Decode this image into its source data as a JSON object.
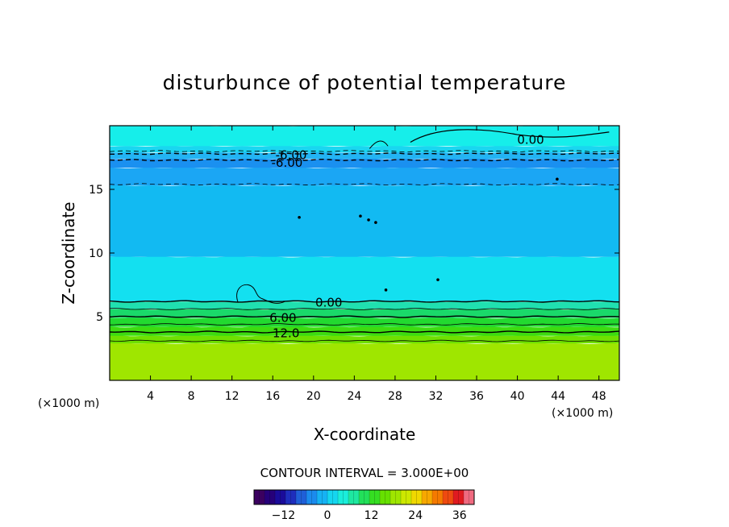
{
  "chart_data": {
    "type": "contour",
    "title": "disturbunce of potential temperature",
    "xlabel": "X-coordinate",
    "ylabel": "Z-coordinate",
    "x_unit": "(×1000 m)",
    "z_unit": "(×1000 m)",
    "xlim": [
      0,
      50
    ],
    "ylim": [
      0,
      20
    ],
    "x_ticks": [
      4,
      8,
      12,
      16,
      20,
      24,
      28,
      32,
      36,
      40,
      44,
      48
    ],
    "y_ticks": [
      5,
      10,
      15
    ],
    "contour_interval_text": "CONTOUR INTERVAL = 3.000E+00",
    "contour_interval": 3.0,
    "contour_labels": [
      {
        "text": "0.00",
        "x": 41.3,
        "z": 18.9
      },
      {
        "text": "-6.00",
        "x": 17.4,
        "z": 17.1
      },
      {
        "text": "-6.00",
        "x": 17.8,
        "z": 17.7
      },
      {
        "text": "0.00",
        "x": 21.5,
        "z": 6.1
      },
      {
        "text": "6.00",
        "x": 17.0,
        "z": 4.9
      },
      {
        "text": "12.0",
        "x": 17.3,
        "z": 3.7
      }
    ],
    "field_layers": [
      {
        "z_from": 0.0,
        "z_to": 2.9,
        "value": 15,
        "color": "#9fe600"
      },
      {
        "z_from": 2.9,
        "z_to": 3.5,
        "value": 13,
        "color": "#6fe000"
      },
      {
        "z_from": 3.5,
        "z_to": 4.2,
        "value": 11,
        "color": "#3ddc10"
      },
      {
        "z_from": 4.2,
        "z_to": 4.9,
        "value": 8,
        "color": "#22d930"
      },
      {
        "z_from": 4.9,
        "z_to": 5.6,
        "value": 5,
        "color": "#1ad96a"
      },
      {
        "z_from": 5.6,
        "z_to": 6.2,
        "value": 2,
        "color": "#20e0b0"
      },
      {
        "z_from": 6.2,
        "z_to": 9.7,
        "value": -1,
        "color": "#13e0f0"
      },
      {
        "z_from": 9.7,
        "z_to": 15.3,
        "value": -3,
        "color": "#12baf2"
      },
      {
        "z_from": 15.3,
        "z_to": 16.7,
        "value": -5,
        "color": "#1ba6f4"
      },
      {
        "z_from": 16.7,
        "z_to": 17.4,
        "value": -7,
        "color": "#1a90f0"
      },
      {
        "z_from": 17.4,
        "z_to": 17.9,
        "value": -6,
        "color": "#23b4f3"
      },
      {
        "z_from": 17.9,
        "z_to": 18.4,
        "value": -2,
        "color": "#1ad6f0"
      },
      {
        "z_from": 18.4,
        "z_to": 20.0,
        "value": 0,
        "color": "#16eeea"
      }
    ],
    "contour_lines": [
      {
        "z": 3.1,
        "level": 15,
        "style": "solid",
        "width": 0.8
      },
      {
        "z": 3.8,
        "level": 12,
        "style": "solid",
        "width": 1.4
      },
      {
        "z": 4.4,
        "level": 9,
        "style": "solid",
        "width": 0.8
      },
      {
        "z": 5.0,
        "level": 6,
        "style": "solid",
        "width": 1.4
      },
      {
        "z": 5.6,
        "level": 3,
        "style": "solid",
        "width": 0.8
      },
      {
        "z": 6.2,
        "level": 0,
        "style": "solid",
        "width": 1.4
      },
      {
        "z": 15.4,
        "level": -3,
        "style": "dashed",
        "width": 0.8
      },
      {
        "z": 17.3,
        "level": -6,
        "style": "dashed",
        "width": 1.4
      },
      {
        "z": 17.8,
        "level": -6,
        "style": "dashed",
        "width": 1.4
      },
      {
        "z": 18.0,
        "level": -3,
        "style": "dashed",
        "width": 0.8
      }
    ],
    "colorbar": {
      "min": -20,
      "max": 40,
      "ticks": [
        -12,
        0,
        12,
        24,
        36
      ],
      "tick_labels": [
        "−12",
        "0",
        "12",
        "24",
        "36"
      ],
      "colors": [
        "#3b0060",
        "#26007a",
        "#1a0b9a",
        "#1e2dbd",
        "#1f5fd8",
        "#1b8bee",
        "#16b2f4",
        "#15d6f0",
        "#1aeedb",
        "#1ee8a0",
        "#22e05a",
        "#35de22",
        "#66e000",
        "#9fe600",
        "#cde800",
        "#f0d800",
        "#f7a800",
        "#f57a00",
        "#ef4a10",
        "#e01a20",
        "#f06a80"
      ]
    }
  }
}
